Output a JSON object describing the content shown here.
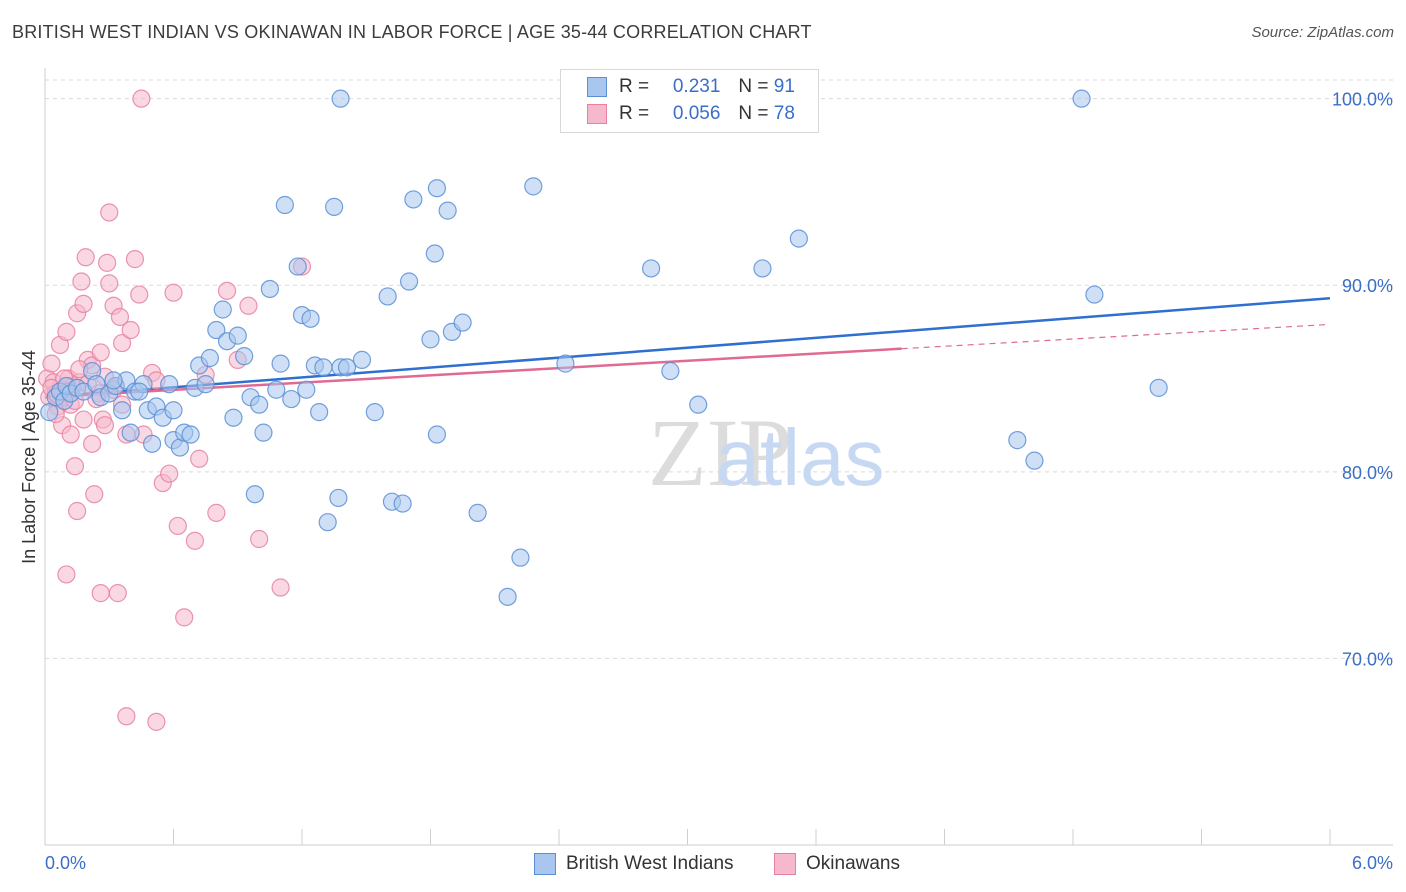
{
  "title": "BRITISH WEST INDIAN VS OKINAWAN IN LABOR FORCE | AGE 35-44 CORRELATION CHART",
  "source": "Source: ZipAtlas.com",
  "watermark": {
    "zip": "ZIP",
    "atlas": "atlas"
  },
  "colors": {
    "blue_fill": "#a8c6ee",
    "blue_stroke": "#5a8fd6",
    "blue_line": "#2f6fcf",
    "pink_fill": "#f5b8cc",
    "pink_stroke": "#e7819f",
    "pink_line": "#e06a93",
    "axis_label_blue": "#3a6ec7",
    "grid": "#d9d9d9"
  },
  "legend": {
    "series": [
      {
        "r_label": "R =",
        "r_value": "0.231",
        "n_label": "N =",
        "n_value": "91"
      },
      {
        "r_label": "R =",
        "r_value": "0.056",
        "n_label": "N =",
        "n_value": "78"
      }
    ]
  },
  "bottom_legend": [
    "British West Indians",
    "Okinawans"
  ],
  "chart_data": {
    "type": "scatter",
    "title": "BRITISH WEST INDIAN VS OKINAWAN IN LABOR FORCE | AGE 35-44 CORRELATION CHART",
    "xlabel": "",
    "ylabel": "In Labor Force | Age 35-44",
    "xlim": [
      0.0,
      6.0
    ],
    "ylim": [
      60.0,
      101.0
    ],
    "x_tick_labels": [
      "0.0%",
      "6.0%"
    ],
    "y_ticks": [
      70.0,
      80.0,
      90.0,
      100.0
    ],
    "y_tick_labels": [
      "70.0%",
      "80.0%",
      "90.0%",
      "100.0%"
    ],
    "grid": true,
    "series": [
      {
        "name": "British West Indians",
        "r": 0.231,
        "n": 91,
        "trend": {
          "x": [
            0.0,
            6.0
          ],
          "y": [
            84.0,
            89.3
          ]
        },
        "points": [
          [
            0.02,
            83.2
          ],
          [
            0.05,
            84.0
          ],
          [
            0.07,
            84.3
          ],
          [
            0.09,
            83.8
          ],
          [
            0.1,
            84.6
          ],
          [
            0.12,
            84.2
          ],
          [
            0.15,
            84.5
          ],
          [
            0.18,
            84.3
          ],
          [
            0.22,
            85.4
          ],
          [
            0.24,
            84.7
          ],
          [
            0.26,
            84.0
          ],
          [
            0.3,
            84.2
          ],
          [
            0.33,
            84.6
          ],
          [
            0.36,
            83.3
          ],
          [
            0.38,
            84.9
          ],
          [
            0.4,
            82.1
          ],
          [
            0.42,
            84.3
          ],
          [
            0.46,
            84.7
          ],
          [
            0.48,
            83.3
          ],
          [
            0.5,
            81.5
          ],
          [
            0.52,
            83.5
          ],
          [
            0.55,
            82.9
          ],
          [
            0.58,
            84.7
          ],
          [
            0.6,
            81.7
          ],
          [
            0.63,
            81.3
          ],
          [
            0.65,
            82.1
          ],
          [
            0.68,
            82.0
          ],
          [
            0.7,
            84.5
          ],
          [
            0.72,
            85.7
          ],
          [
            0.75,
            84.7
          ],
          [
            0.77,
            86.1
          ],
          [
            0.8,
            87.6
          ],
          [
            0.83,
            88.7
          ],
          [
            0.85,
            87.0
          ],
          [
            0.88,
            82.9
          ],
          [
            0.9,
            87.3
          ],
          [
            0.93,
            86.2
          ],
          [
            0.96,
            84.0
          ],
          [
            0.98,
            78.8
          ],
          [
            1.0,
            83.6
          ],
          [
            1.02,
            82.1
          ],
          [
            1.05,
            89.8
          ],
          [
            1.08,
            84.4
          ],
          [
            1.1,
            85.8
          ],
          [
            1.12,
            94.3
          ],
          [
            1.15,
            83.9
          ],
          [
            1.18,
            91.0
          ],
          [
            1.2,
            88.4
          ],
          [
            1.22,
            84.4
          ],
          [
            1.24,
            88.2
          ],
          [
            1.26,
            85.7
          ],
          [
            1.28,
            83.2
          ],
          [
            1.3,
            85.6
          ],
          [
            1.32,
            77.3
          ],
          [
            1.35,
            94.2
          ],
          [
            1.37,
            78.6
          ],
          [
            1.38,
            85.6
          ],
          [
            1.41,
            85.6
          ],
          [
            1.48,
            86.0
          ],
          [
            1.54,
            83.2
          ],
          [
            1.6,
            89.4
          ],
          [
            1.62,
            78.4
          ],
          [
            1.67,
            78.3
          ],
          [
            1.7,
            90.2
          ],
          [
            1.72,
            94.6
          ],
          [
            1.8,
            87.1
          ],
          [
            1.82,
            91.7
          ],
          [
            1.83,
            95.2
          ],
          [
            1.88,
            94.0
          ],
          [
            1.9,
            87.5
          ],
          [
            1.95,
            88.0
          ],
          [
            2.02,
            77.8
          ],
          [
            2.16,
            73.3
          ],
          [
            2.22,
            75.4
          ],
          [
            2.28,
            95.3
          ],
          [
            2.43,
            85.8
          ],
          [
            1.83,
            82.0
          ],
          [
            2.83,
            90.9
          ],
          [
            2.92,
            85.4
          ],
          [
            3.05,
            83.6
          ],
          [
            3.35,
            90.9
          ],
          [
            3.52,
            92.5
          ],
          [
            1.38,
            100.0
          ],
          [
            4.84,
            100.0
          ],
          [
            4.54,
            81.7
          ],
          [
            4.62,
            80.6
          ],
          [
            4.9,
            89.5
          ],
          [
            5.2,
            84.5
          ],
          [
            0.32,
            84.9
          ],
          [
            0.6,
            83.3
          ],
          [
            0.44,
            84.3
          ]
        ]
      },
      {
        "name": "Okinawans",
        "r": 0.056,
        "n": 78,
        "trend": {
          "x": [
            0.0,
            6.0
          ],
          "y": [
            84.0,
            87.9
          ]
        },
        "points": [
          [
            0.01,
            85.0
          ],
          [
            0.02,
            84.0
          ],
          [
            0.03,
            85.8
          ],
          [
            0.04,
            84.8
          ],
          [
            0.05,
            84.2
          ],
          [
            0.06,
            83.5
          ],
          [
            0.07,
            86.8
          ],
          [
            0.08,
            82.5
          ],
          [
            0.09,
            84.0
          ],
          [
            0.1,
            87.5
          ],
          [
            0.11,
            85.0
          ],
          [
            0.12,
            83.6
          ],
          [
            0.13,
            84.6
          ],
          [
            0.14,
            80.3
          ],
          [
            0.15,
            88.5
          ],
          [
            0.16,
            84.8
          ],
          [
            0.17,
            90.2
          ],
          [
            0.18,
            89.0
          ],
          [
            0.19,
            91.5
          ],
          [
            0.2,
            86.0
          ],
          [
            0.22,
            85.7
          ],
          [
            0.23,
            78.8
          ],
          [
            0.25,
            84.2
          ],
          [
            0.26,
            86.4
          ],
          [
            0.27,
            82.8
          ],
          [
            0.28,
            82.5
          ],
          [
            0.29,
            91.2
          ],
          [
            0.3,
            90.1
          ],
          [
            0.32,
            88.9
          ],
          [
            0.33,
            84.6
          ],
          [
            0.34,
            73.5
          ],
          [
            0.35,
            88.3
          ],
          [
            0.36,
            86.9
          ],
          [
            0.38,
            82.0
          ],
          [
            0.4,
            87.6
          ],
          [
            0.42,
            91.4
          ],
          [
            0.44,
            89.5
          ],
          [
            0.46,
            82.0
          ],
          [
            0.5,
            85.3
          ],
          [
            0.52,
            84.9
          ],
          [
            0.55,
            79.4
          ],
          [
            0.58,
            79.9
          ],
          [
            0.6,
            89.6
          ],
          [
            0.62,
            77.1
          ],
          [
            0.65,
            72.2
          ],
          [
            0.7,
            76.3
          ],
          [
            0.72,
            80.7
          ],
          [
            0.75,
            85.2
          ],
          [
            0.8,
            77.8
          ],
          [
            0.85,
            89.7
          ],
          [
            0.9,
            86.0
          ],
          [
            0.95,
            88.9
          ],
          [
            1.0,
            76.4
          ],
          [
            1.1,
            73.8
          ],
          [
            1.2,
            91.0
          ],
          [
            0.38,
            66.9
          ],
          [
            0.52,
            66.6
          ],
          [
            0.1,
            74.5
          ],
          [
            0.26,
            73.5
          ],
          [
            0.15,
            77.9
          ],
          [
            0.3,
            93.9
          ],
          [
            0.45,
            100.0
          ],
          [
            0.05,
            83.1
          ],
          [
            0.08,
            84.4
          ],
          [
            0.12,
            82.0
          ],
          [
            0.18,
            82.8
          ],
          [
            0.22,
            81.5
          ],
          [
            0.03,
            84.5
          ],
          [
            0.06,
            84.1
          ],
          [
            0.09,
            85.0
          ],
          [
            0.11,
            84.3
          ],
          [
            0.14,
            83.8
          ],
          [
            0.16,
            85.5
          ],
          [
            0.2,
            84.7
          ],
          [
            0.24,
            83.9
          ],
          [
            0.28,
            85.1
          ],
          [
            0.32,
            84.4
          ],
          [
            0.36,
            83.6
          ]
        ]
      }
    ]
  }
}
